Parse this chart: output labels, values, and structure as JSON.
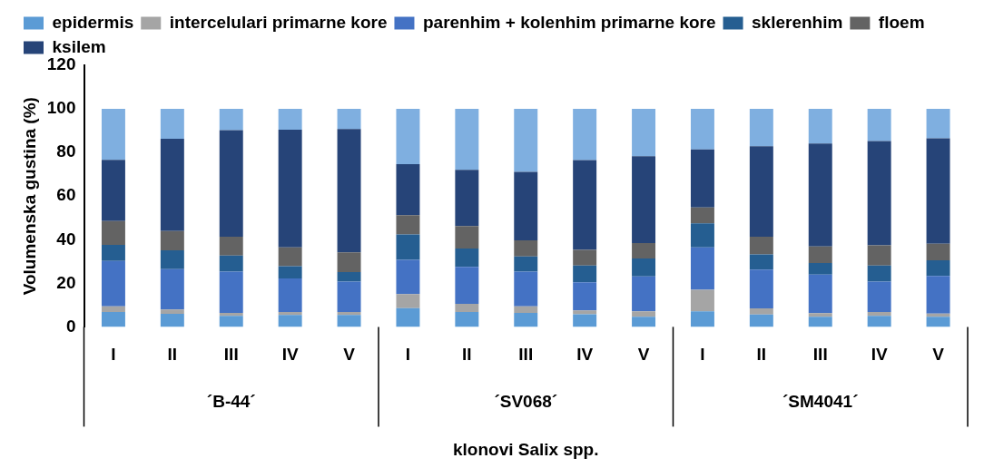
{
  "chart_data": {
    "type": "bar",
    "stacked": true,
    "ylabel": "Volumenska gustina (%)",
    "xlabel": "klonovi Salix spp.",
    "categories": [
      "I",
      "II",
      "III",
      "IV",
      "V",
      "I",
      "II",
      "III",
      "IV",
      "V",
      "I",
      "II",
      "III",
      "IV",
      "V"
    ],
    "annotations": [
      "´B-44´",
      "´SV068´",
      "´SM4041´"
    ],
    "ylim": [
      0,
      120
    ],
    "yticks": [
      0,
      20,
      40,
      60,
      80,
      100,
      120
    ],
    "grid": false,
    "legend": "top",
    "series": [
      {
        "name": "epidermis",
        "color": "#5b9bd5",
        "values": [
          6.8,
          6.0,
          5.1,
          5.5,
          5.5,
          8.6,
          6.8,
          6.4,
          5.8,
          4.6,
          7.1,
          5.7,
          4.6,
          5.1,
          4.6
        ]
      },
      {
        "name": "intercelulari primarne kore",
        "color": "#a5a5a5",
        "values": [
          2.6,
          2.0,
          1.3,
          1.3,
          1.3,
          6.4,
          3.8,
          3.0,
          1.8,
          2.5,
          9.9,
          2.8,
          1.7,
          1.7,
          1.5
        ]
      },
      {
        "name": "parenhim + kolenhim primarne kore",
        "color": "#4472c4",
        "values": [
          20.8,
          18.5,
          18.9,
          15.4,
          14.0,
          15.7,
          16.9,
          15.9,
          12.9,
          16.1,
          19.5,
          17.8,
          17.7,
          14.0,
          17.3
        ]
      },
      {
        "name": "sklerenhim",
        "color": "#255e91",
        "values": [
          7.4,
          8.6,
          7.4,
          5.6,
          4.3,
          11.7,
          8.4,
          7.0,
          7.6,
          8.2,
          11.0,
          6.9,
          5.3,
          7.3,
          7.1
        ]
      },
      {
        "name": "floem",
        "color": "#636363",
        "values": [
          10.9,
          8.9,
          8.7,
          8.7,
          9.1,
          8.8,
          10.4,
          7.4,
          7.2,
          7.0,
          7.3,
          8.2,
          7.6,
          9.3,
          7.6
        ]
      },
      {
        "name": "ksilem",
        "color": "#264478",
        "values": [
          28.1,
          42.3,
          48.9,
          54.0,
          56.6,
          23.4,
          25.7,
          31.4,
          41.2,
          39.9,
          26.6,
          41.5,
          47.2,
          47.9,
          48.4
        ]
      },
      {
        "color": "#7fafe0",
        "values": [
          23.4,
          13.7,
          9.7,
          9.5,
          9.2,
          25.4,
          28.0,
          28.9,
          23.5,
          21.7,
          18.6,
          17.1,
          15.9,
          14.7,
          13.5
        ]
      }
    ]
  }
}
